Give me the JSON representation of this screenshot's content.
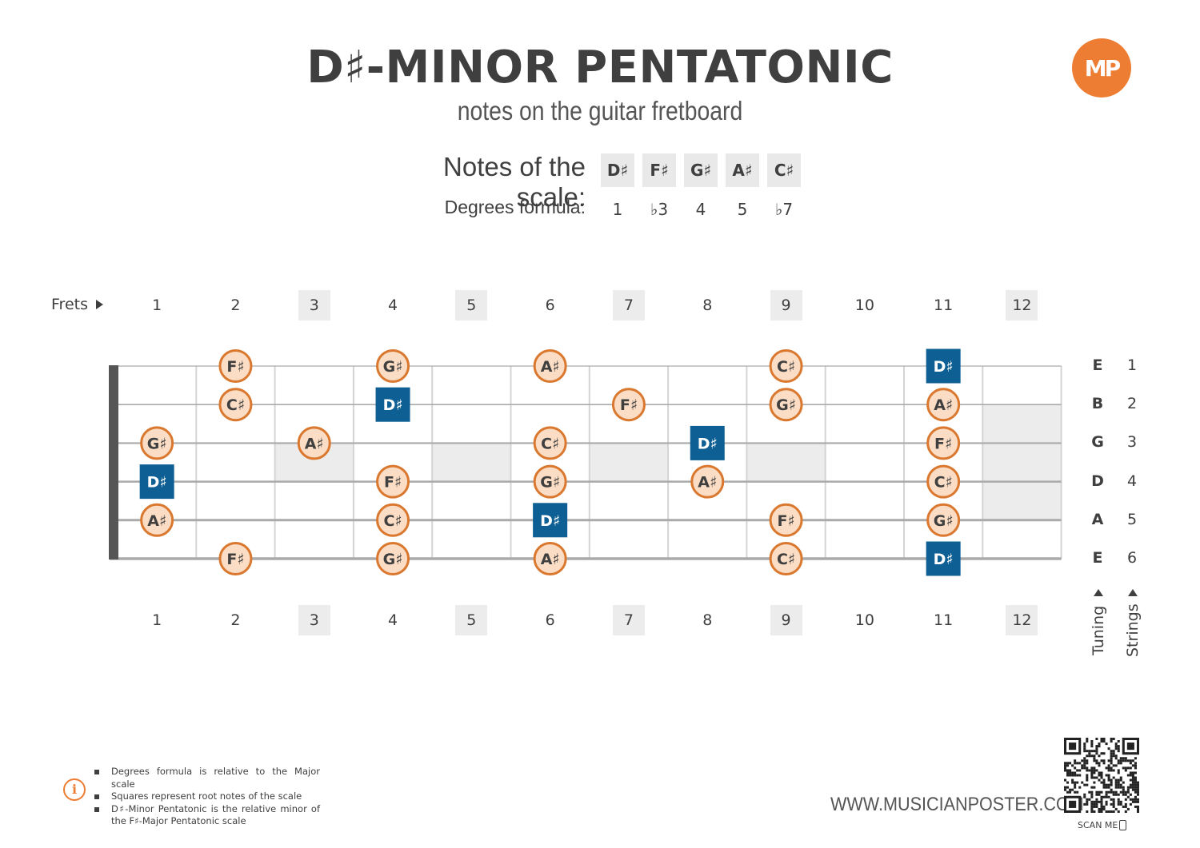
{
  "header": {
    "title": "D♯-MINOR PENTATONIC",
    "subtitle": "notes on the guitar fretboard",
    "logo_text": "MP"
  },
  "scale": {
    "notes_label": "Notes of the scale:",
    "degrees_label": "Degrees formula:",
    "notes": [
      "D♯",
      "F♯",
      "G♯",
      "A♯",
      "C♯"
    ],
    "degrees": [
      "1",
      "♭3",
      "4",
      "5",
      "♭7"
    ]
  },
  "fretboard": {
    "frets_label": "Frets",
    "fret_numbers": [
      "1",
      "2",
      "3",
      "4",
      "5",
      "6",
      "7",
      "8",
      "9",
      "10",
      "11",
      "12"
    ],
    "marker_frets": [
      3,
      5,
      7,
      9,
      12
    ],
    "double_marker_fret": 12,
    "tuning": [
      "E",
      "B",
      "G",
      "D",
      "A",
      "E"
    ],
    "string_numbers": [
      "1",
      "2",
      "3",
      "4",
      "5",
      "6"
    ],
    "tuning_label": "Tuning",
    "strings_label": "Strings",
    "notes": [
      {
        "string": 1,
        "fret": 2,
        "note": "F♯",
        "root": false
      },
      {
        "string": 1,
        "fret": 4,
        "note": "G♯",
        "root": false
      },
      {
        "string": 1,
        "fret": 6,
        "note": "A♯",
        "root": false
      },
      {
        "string": 1,
        "fret": 9,
        "note": "C♯",
        "root": false
      },
      {
        "string": 1,
        "fret": 11,
        "note": "D♯",
        "root": true
      },
      {
        "string": 2,
        "fret": 2,
        "note": "C♯",
        "root": false
      },
      {
        "string": 2,
        "fret": 4,
        "note": "D♯",
        "root": true
      },
      {
        "string": 2,
        "fret": 7,
        "note": "F♯",
        "root": false
      },
      {
        "string": 2,
        "fret": 9,
        "note": "G♯",
        "root": false
      },
      {
        "string": 2,
        "fret": 11,
        "note": "A♯",
        "root": false
      },
      {
        "string": 3,
        "fret": 1,
        "note": "G♯",
        "root": false
      },
      {
        "string": 3,
        "fret": 3,
        "note": "A♯",
        "root": false
      },
      {
        "string": 3,
        "fret": 6,
        "note": "C♯",
        "root": false
      },
      {
        "string": 3,
        "fret": 8,
        "note": "D♯",
        "root": true
      },
      {
        "string": 3,
        "fret": 11,
        "note": "F♯",
        "root": false
      },
      {
        "string": 4,
        "fret": 1,
        "note": "D♯",
        "root": true
      },
      {
        "string": 4,
        "fret": 4,
        "note": "F♯",
        "root": false
      },
      {
        "string": 4,
        "fret": 6,
        "note": "G♯",
        "root": false
      },
      {
        "string": 4,
        "fret": 8,
        "note": "A♯",
        "root": false
      },
      {
        "string": 4,
        "fret": 11,
        "note": "C♯",
        "root": false
      },
      {
        "string": 5,
        "fret": 1,
        "note": "A♯",
        "root": false
      },
      {
        "string": 5,
        "fret": 4,
        "note": "C♯",
        "root": false
      },
      {
        "string": 5,
        "fret": 6,
        "note": "D♯",
        "root": true
      },
      {
        "string": 5,
        "fret": 9,
        "note": "F♯",
        "root": false
      },
      {
        "string": 5,
        "fret": 11,
        "note": "G♯",
        "root": false
      },
      {
        "string": 6,
        "fret": 2,
        "note": "F♯",
        "root": false
      },
      {
        "string": 6,
        "fret": 4,
        "note": "G♯",
        "root": false
      },
      {
        "string": 6,
        "fret": 6,
        "note": "A♯",
        "root": false
      },
      {
        "string": 6,
        "fret": 9,
        "note": "C♯",
        "root": false
      },
      {
        "string": 6,
        "fret": 11,
        "note": "D♯",
        "root": true
      }
    ]
  },
  "footnotes": [
    "Degrees formula is relative to the Major scale",
    "Squares represent root notes of the scale",
    "D♯-Minor Pentatonic is the relative minor of the F♯-Major Pentatonic scale"
  ],
  "footer": {
    "website": "WWW.MUSICIANPOSTER.COM",
    "scan_label": "SCAN ME"
  },
  "colors": {
    "root_fill": "#0d5f94",
    "note_fill": "#fbdcc4",
    "note_ring": "#d9782e",
    "accent": "#ee7d34",
    "marker_fill": "#e9e9e9",
    "text": "#3f3f3f"
  }
}
